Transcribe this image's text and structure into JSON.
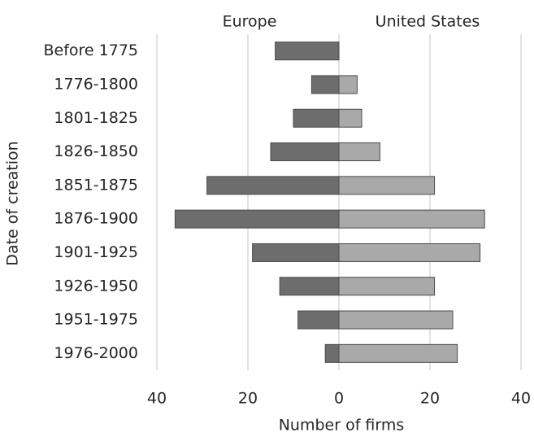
{
  "chart_data": {
    "type": "butterfly-bar",
    "categories": [
      "Before 1775",
      "1776-1800",
      "1801-1825",
      "1826-1850",
      "1851-1875",
      "1876-1900",
      "1901-1925",
      "1926-1950",
      "1951-1975",
      "1976-2000"
    ],
    "series": [
      {
        "name": "Europe",
        "color": "#6d6d6d",
        "values": [
          -14,
          -6,
          -10,
          -15,
          -29,
          -36,
          -19,
          -13,
          -9,
          -3
        ]
      },
      {
        "name": "United States",
        "color": "#a9a9a9",
        "values": [
          0,
          4,
          5,
          9,
          21,
          32,
          31,
          21,
          25,
          26
        ]
      }
    ],
    "xlim": [
      -40,
      40
    ],
    "xticks": [
      {
        "value": -40,
        "label": "40"
      },
      {
        "value": -20,
        "label": "20"
      },
      0,
      20,
      40
    ],
    "xlabel": "Number of firms",
    "ylabel": "Date of creation",
    "grid": true
  }
}
